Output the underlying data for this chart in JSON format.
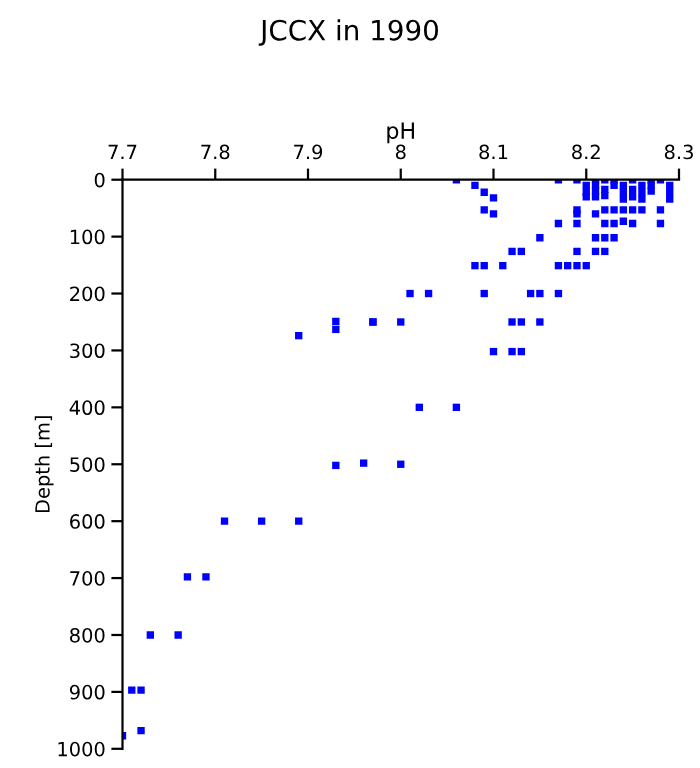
{
  "chart_data": {
    "type": "scatter",
    "title": "JCCX in 1990",
    "xlabel": "pH",
    "ylabel": "Depth [m]",
    "xlim": [
      7.7,
      8.3
    ],
    "xticks": [
      7.7,
      7.8,
      7.9,
      8,
      8.1,
      8.2,
      8.3
    ],
    "ylim": [
      1000,
      0
    ],
    "yticks": [
      0,
      100,
      200,
      300,
      400,
      500,
      600,
      700,
      800,
      900,
      1000
    ],
    "grid": false,
    "marker": "square",
    "legend": false,
    "series": [
      {
        "color": "#0000ff",
        "x": [
          8.06,
          8.17,
          8.19,
          8.22,
          8.23,
          8.25,
          8.27,
          8.28,
          8.08,
          8.23,
          8.27,
          8.09,
          8.1,
          8.2,
          8.2,
          8.2,
          8.21,
          8.21,
          8.21,
          8.21,
          8.22,
          8.22,
          8.24,
          8.24,
          8.24,
          8.25,
          8.25,
          8.26,
          8.26,
          8.26,
          8.27,
          8.29,
          8.29,
          8.29,
          8.09,
          8.19,
          8.22,
          8.23,
          8.24,
          8.25,
          8.26,
          8.28,
          8.1,
          8.19,
          8.21,
          8.17,
          8.19,
          8.22,
          8.23,
          8.24,
          8.25,
          8.28,
          8.15,
          8.21,
          8.22,
          8.23,
          8.12,
          8.13,
          8.19,
          8.21,
          8.22,
          8.08,
          8.09,
          8.11,
          8.17,
          8.18,
          8.19,
          8.2,
          8.01,
          8.03,
          8.09,
          8.14,
          8.15,
          8.17,
          7.97,
          8.0,
          8.12,
          8.13,
          8.15,
          7.89,
          7.93,
          7.93,
          7.97,
          8.1,
          8.12,
          8.13,
          8.02,
          8.06,
          7.93,
          7.96,
          8.0,
          7.81,
          7.85,
          7.89,
          7.77,
          7.79,
          7.73,
          7.76,
          7.71,
          7.72,
          7.72,
          7.7
        ],
        "values": [
          0,
          0,
          0,
          0,
          0,
          0,
          0,
          0,
          10,
          10,
          10,
          22,
          32,
          10,
          22,
          30,
          0,
          10,
          20,
          30,
          17,
          28,
          10,
          22,
          34,
          17,
          30,
          10,
          22,
          34,
          20,
          10,
          22,
          34,
          53,
          53,
          53,
          53,
          53,
          53,
          53,
          53,
          60,
          60,
          60,
          77,
          77,
          77,
          77,
          73,
          77,
          77,
          102,
          102,
          102,
          102,
          126,
          126,
          126,
          126,
          126,
          151,
          151,
          151,
          151,
          151,
          151,
          151,
          200,
          200,
          200,
          200,
          200,
          200,
          250,
          250,
          250,
          250,
          250,
          274,
          249,
          263,
          250,
          302,
          302,
          302,
          400,
          400,
          502,
          498,
          500,
          600,
          600,
          600,
          698,
          698,
          800,
          800,
          897,
          897,
          968,
          977
        ]
      }
    ]
  }
}
